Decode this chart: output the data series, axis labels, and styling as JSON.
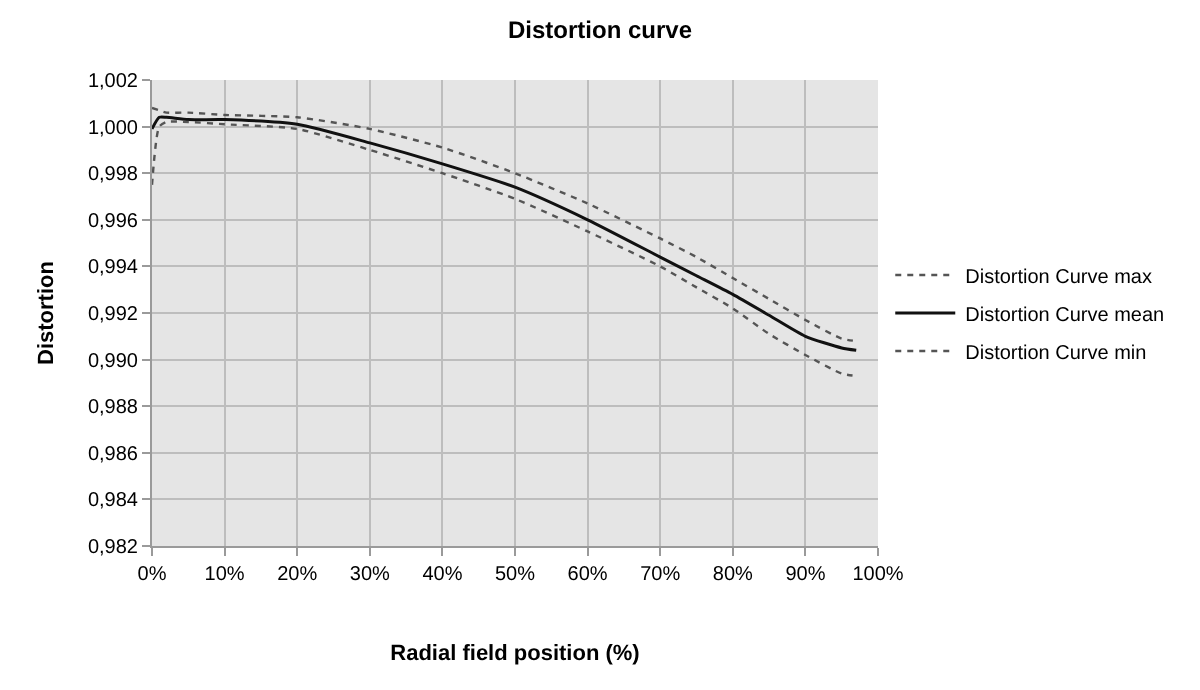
{
  "chart_data": {
    "type": "line",
    "title": "Distortion curve",
    "xlabel": "Radial field position (%)",
    "ylabel": "Distortion",
    "x": [
      0,
      1,
      2,
      5,
      10,
      20,
      30,
      40,
      50,
      60,
      70,
      75,
      80,
      85,
      90,
      95,
      97
    ],
    "series": [
      {
        "name": "Distortion Curve max",
        "color": "#555555",
        "line_style": "dotted",
        "values": [
          1.0008,
          1.0007,
          1.0006,
          1.0006,
          1.0005,
          1.0004,
          0.9999,
          0.9991,
          0.998,
          0.9967,
          0.9952,
          0.9944,
          0.9935,
          0.9926,
          0.9917,
          0.9909,
          0.9908
        ]
      },
      {
        "name": "Distortion Curve mean",
        "color": "#111111",
        "line_style": "solid",
        "values": [
          0.9999,
          1.0004,
          1.0004,
          1.0003,
          1.0003,
          1.0001,
          0.9993,
          0.9984,
          0.9974,
          0.996,
          0.9944,
          0.9936,
          0.9928,
          0.9919,
          0.991,
          0.9905,
          0.9904
        ]
      },
      {
        "name": "Distortion Curve min",
        "color": "#555555",
        "line_style": "dotted",
        "values": [
          0.9975,
          1.0,
          1.0002,
          1.0002,
          1.0001,
          0.9999,
          0.999,
          0.998,
          0.9969,
          0.9955,
          0.994,
          0.9931,
          0.9922,
          0.9911,
          0.9902,
          0.9894,
          0.9893
        ]
      }
    ],
    "xlim": [
      0,
      100
    ],
    "xticks": [
      {
        "value": 0,
        "label": "0%"
      },
      {
        "value": 10,
        "label": "10%"
      },
      {
        "value": 20,
        "label": "20%"
      },
      {
        "value": 30,
        "label": "30%"
      },
      {
        "value": 40,
        "label": "40%"
      },
      {
        "value": 50,
        "label": "50%"
      },
      {
        "value": 60,
        "label": "60%"
      },
      {
        "value": 70,
        "label": "70%"
      },
      {
        "value": 80,
        "label": "80%"
      },
      {
        "value": 90,
        "label": "90%"
      },
      {
        "value": 100,
        "label": "100%"
      }
    ],
    "ylim": [
      0.982,
      1.002
    ],
    "yticks": [
      {
        "value": 0.982,
        "label": "0,982"
      },
      {
        "value": 0.984,
        "label": "0,984"
      },
      {
        "value": 0.986,
        "label": "0,986"
      },
      {
        "value": 0.988,
        "label": "0,988"
      },
      {
        "value": 0.99,
        "label": "0,990"
      },
      {
        "value": 0.992,
        "label": "0,992"
      },
      {
        "value": 0.994,
        "label": "0,994"
      },
      {
        "value": 0.996,
        "label": "0,996"
      },
      {
        "value": 0.998,
        "label": "0,998"
      },
      {
        "value": 1.0,
        "label": "1,000"
      },
      {
        "value": 1.002,
        "label": "1,002"
      }
    ],
    "grid": true,
    "legend": "right",
    "marker": "none"
  }
}
